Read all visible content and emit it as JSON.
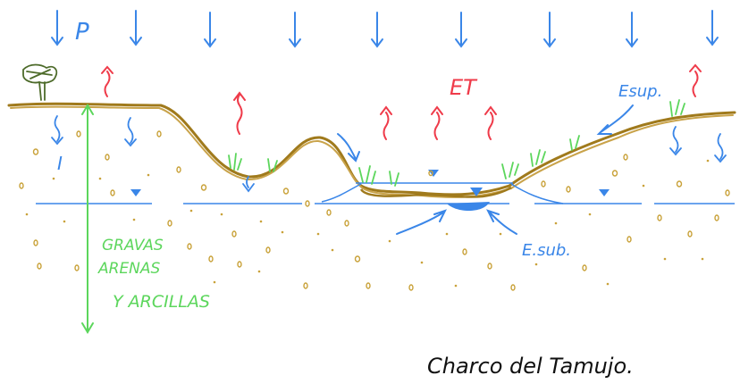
{
  "labels": {
    "precip": "P",
    "et": "ET",
    "infiltration": "I",
    "surface_flow": "Esup.",
    "subsurface_flow": "E.sub.",
    "soil_line1": "GRAVAS",
    "soil_line2": "ARENAS",
    "soil_line3": "Y ARCILLAS",
    "caption": "Charco del Tamujo."
  },
  "colors": {
    "precip_arrows": "#3a86e8",
    "et_arrows": "#ef3b4a",
    "ground_line": "#a07a1c",
    "ground_fill": "#c9a34a",
    "pebbles": "#c9a23a",
    "water_table": "#3a86e8",
    "vegetation": "#5cd65c",
    "soil_text": "#5cd65c",
    "caption": "#111111",
    "tree": "#4d6b2a"
  },
  "icons": [
    "tree-icon",
    "grass-tuft-icon",
    "water-triangle-icon"
  ]
}
